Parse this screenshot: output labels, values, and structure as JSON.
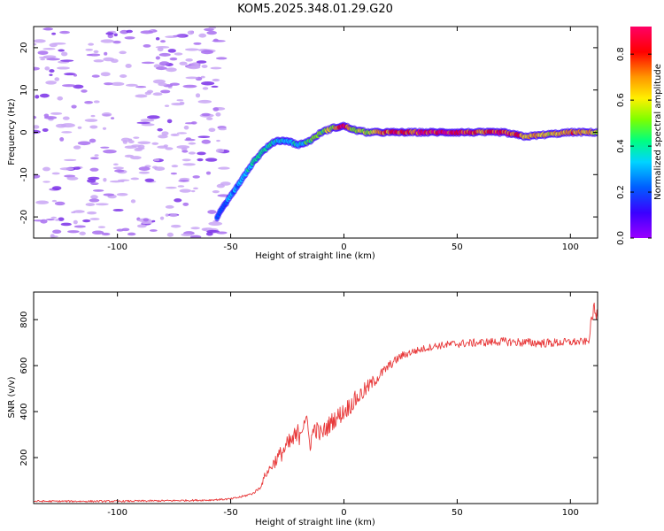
{
  "figure_title": "KOM5.2025.348.01.29.G20",
  "colors": {
    "snr_line": "#e8393a",
    "spec_scale": [
      "#9a00ff",
      "#3a00ff",
      "#005dff",
      "#00d4ff",
      "#00ff7f",
      "#7dff00",
      "#fff000",
      "#ff9800",
      "#ff0000",
      "#ff0066"
    ]
  },
  "chart_data": [
    {
      "type": "heatmap",
      "name": "spectrogram",
      "xlabel": "Height of straight line (km)",
      "ylabel": "Frequency (Hz)",
      "xlim": [
        -137,
        112
      ],
      "ylim": [
        -25,
        25
      ],
      "xticks": [
        -100,
        -50,
        0,
        50,
        100
      ],
      "xtick_labels": [
        "-100",
        "-50",
        "0",
        "50",
        "100"
      ],
      "yticks": [
        -20,
        -10,
        0,
        10,
        20
      ],
      "ytick_labels": [
        "-20",
        "-10",
        "0",
        "10",
        "20"
      ],
      "colorbar": {
        "label": "Normalized spectral amplitude",
        "range": [
          0,
          0.92
        ],
        "ticks": [
          0,
          0.2,
          0.4,
          0.6,
          0.8
        ],
        "tick_labels": [
          "0.0",
          "0.2",
          "0.4",
          "0.6",
          "0.8"
        ]
      },
      "noise_region_x": [
        -137,
        -52
      ],
      "signal_trace": {
        "x": [
          -56,
          -50,
          -45,
          -40,
          -35,
          -30,
          -25,
          -20,
          -15,
          -10,
          -5,
          0,
          5,
          10,
          20,
          30,
          40,
          50,
          60,
          70,
          75,
          80,
          90,
          100,
          112
        ],
        "frequency": [
          -20,
          -15,
          -11,
          -7,
          -4,
          -2,
          -2,
          -3,
          -2,
          0,
          1,
          1.5,
          0.5,
          0,
          0,
          0,
          0,
          0,
          0,
          0,
          -0.5,
          -1,
          -0.5,
          0,
          0
        ],
        "amplitude": [
          0.2,
          0.25,
          0.3,
          0.35,
          0.4,
          0.35,
          0.3,
          0.35,
          0.45,
          0.5,
          0.55,
          0.9,
          0.5,
          0.6,
          0.75,
          0.8,
          0.85,
          0.8,
          0.75,
          0.8,
          0.85,
          0.7,
          0.6,
          0.7,
          0.6
        ]
      }
    },
    {
      "type": "line",
      "name": "snr",
      "xlabel": "Height of straight line (km)",
      "ylabel": "SNR (v/v)",
      "xlim": [
        -137,
        112
      ],
      "ylim": [
        0,
        920
      ],
      "xticks": [
        -100,
        -50,
        0,
        50,
        100
      ],
      "xtick_labels": [
        "-100",
        "-50",
        "0",
        "50",
        "100"
      ],
      "yticks": [
        200,
        400,
        600,
        800
      ],
      "ytick_labels": [
        "200",
        "400",
        "600",
        "800"
      ],
      "series": [
        {
          "name": "SNR",
          "x": [
            -137,
            -120,
            -100,
            -80,
            -60,
            -50,
            -45,
            -40,
            -37,
            -36,
            -35,
            -30,
            -25,
            -20,
            -17,
            -15,
            -13,
            -10,
            -5,
            0,
            5,
            10,
            15,
            20,
            25,
            30,
            40,
            50,
            60,
            70,
            80,
            90,
            100,
            108,
            110,
            112
          ],
          "values": [
            10,
            10,
            10,
            12,
            15,
            20,
            30,
            45,
            70,
            90,
            120,
            190,
            250,
            300,
            380,
            260,
            330,
            300,
            360,
            400,
            450,
            500,
            550,
            600,
            640,
            660,
            685,
            695,
            700,
            705,
            700,
            698,
            702,
            705,
            840,
            810
          ],
          "noise_amplitude": [
            4,
            4,
            4,
            4,
            4,
            4,
            5,
            5,
            8,
            10,
            15,
            30,
            45,
            55,
            45,
            40,
            40,
            40,
            40,
            40,
            40,
            35,
            25,
            20,
            18,
            16,
            15,
            18,
            18,
            18,
            20,
            20,
            18,
            15,
            40,
            40
          ]
        }
      ]
    }
  ]
}
